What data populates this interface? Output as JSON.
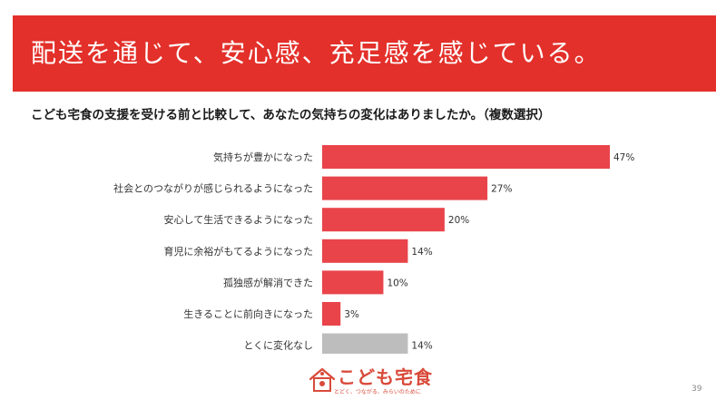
{
  "banner": {
    "title": "配送を通じて、安心感、充足感を感じている。"
  },
  "question": "こども宅食の支援を受ける前と比較して、あなたの気持ちの変化はありましたか。（複数選択）",
  "colors": {
    "accent": "#e3302a",
    "bar": "#e8444a",
    "bar_neutral": "#bdbdbd"
  },
  "chart_data": {
    "type": "bar",
    "orientation": "horizontal",
    "categories": [
      "気持ちが豊かになった",
      "社会とのつながりが感じられるようになった",
      "安心して生活できるようになった",
      "育児に余裕がもてるようになった",
      "孤独感が解消できた",
      "生きることに前向きになった",
      "とくに変化なし"
    ],
    "values": [
      47,
      27,
      20,
      14,
      10,
      3,
      14
    ],
    "value_labels": [
      "47%",
      "27%",
      "20%",
      "14%",
      "10%",
      "3%",
      "14%"
    ],
    "unit": "%",
    "xlim": [
      0,
      47
    ],
    "highlight": [
      true,
      true,
      true,
      true,
      true,
      true,
      false
    ],
    "grid": false,
    "legend": "none"
  },
  "logo": {
    "name": "こども宅食",
    "tagline": "とどく、つながる、みらいのために"
  },
  "page_number": "39"
}
